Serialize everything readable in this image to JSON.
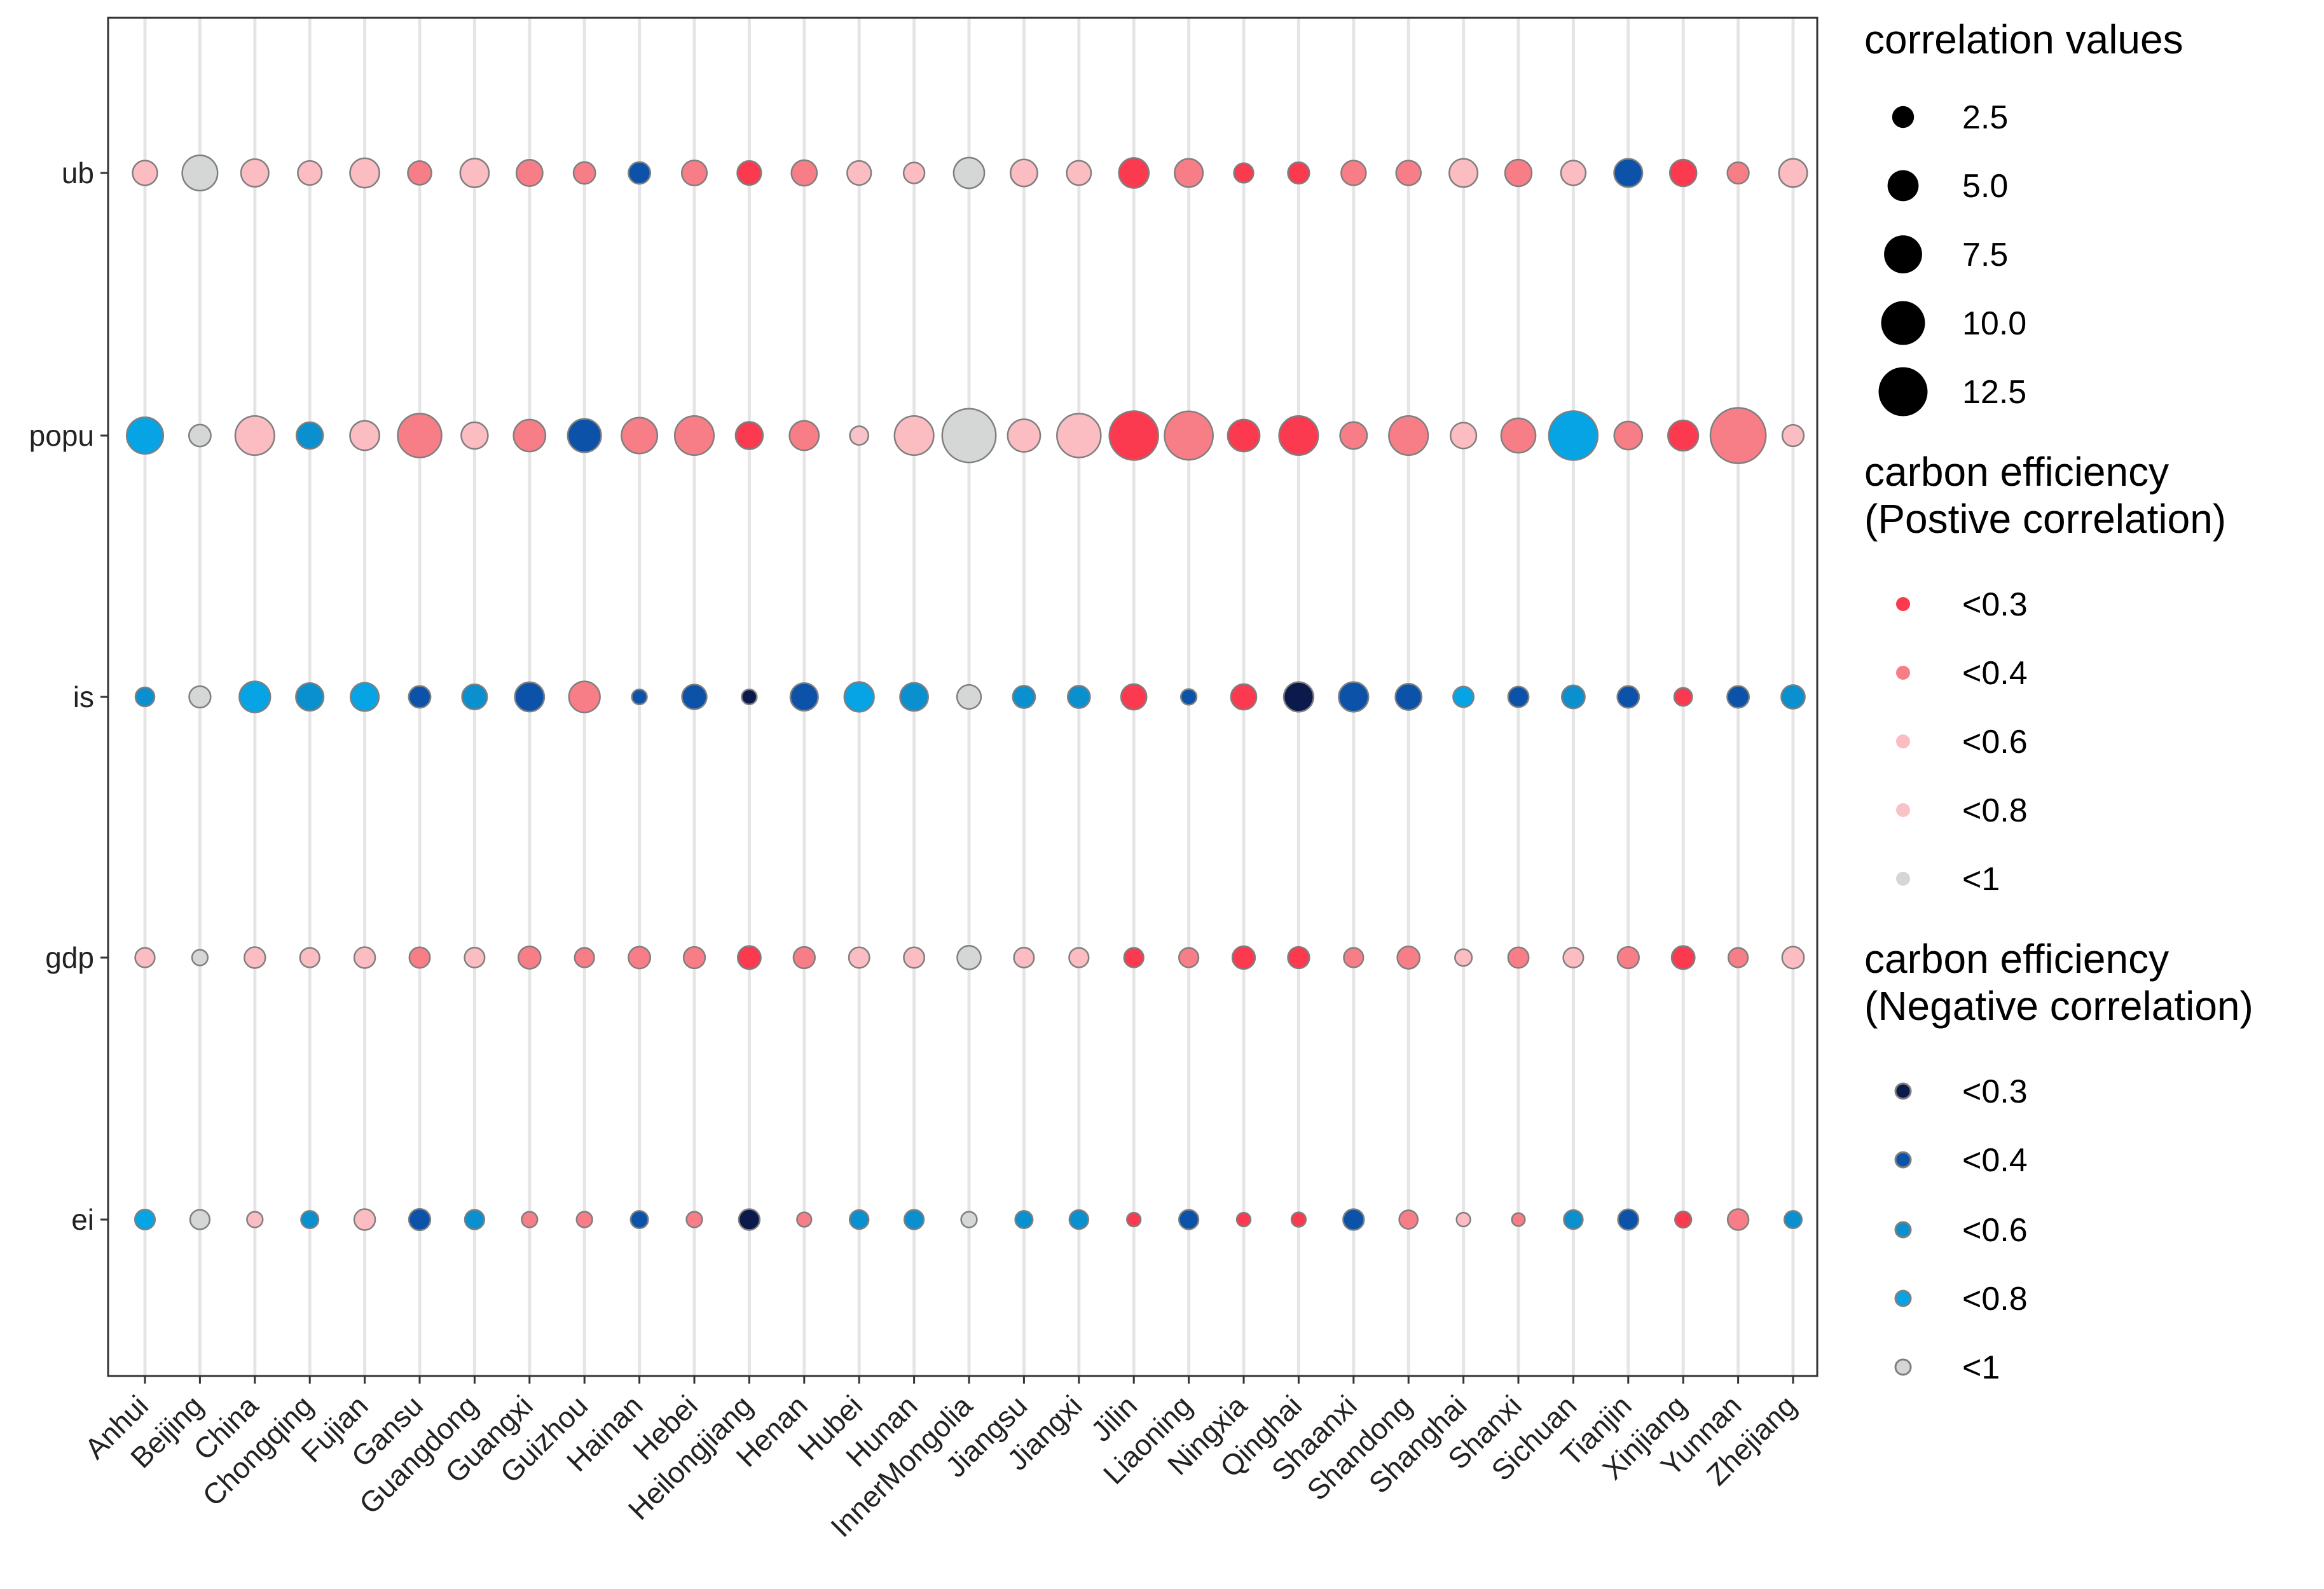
{
  "chart_data": {
    "type": "bubble",
    "categories": [
      "Anhui",
      "Beijing",
      "China",
      "Chongqing",
      "Fujian",
      "Gansu",
      "Guangdong",
      "Guangxi",
      "Guizhou",
      "Hainan",
      "Hebei",
      "Heilongjiang",
      "Henan",
      "Hubei",
      "Hunan",
      "InnerMongolia",
      "Jiangsu",
      "Jiangxi",
      "Jilin",
      "Liaoning",
      "Ningxia",
      "Qinghai",
      "Shaanxi",
      "Shandong",
      "Shanghai",
      "Shanxi",
      "Sichuan",
      "Tianjin",
      "Xinjiang",
      "Yunnan",
      "Zhejiang"
    ],
    "variables": [
      "ub",
      "popu",
      "is",
      "gdp",
      "ei"
    ],
    "colors": {
      "pos": {
        "0.3": "#fb3a4f",
        "0.4": "#f77e87",
        "0.6": "#fbbcc2",
        "0.8": "#f8c3c8",
        "1": "#d5d7d7"
      },
      "neg": {
        "0.3": "#0b1a4a",
        "0.4": "#0b52a8",
        "0.6": "#0a8fcf",
        "0.8": "#06a4e4",
        "1": "#d5d7d7"
      },
      "stroke": "#7f7f7f",
      "grid": "#e5e5e5",
      "panel_border": "#333333"
    },
    "series": [
      {
        "name": "ub",
        "points": [
          {
            "v": 3.2,
            "sign": "pos",
            "cls": "0.6"
          },
          {
            "v": 6.5,
            "sign": "pos",
            "cls": "1"
          },
          {
            "v": 4.0,
            "sign": "pos",
            "cls": "0.6"
          },
          {
            "v": 3.0,
            "sign": "pos",
            "cls": "0.6"
          },
          {
            "v": 4.5,
            "sign": "pos",
            "cls": "0.6"
          },
          {
            "v": 2.9,
            "sign": "pos",
            "cls": "0.4"
          },
          {
            "v": 4.3,
            "sign": "pos",
            "cls": "0.6"
          },
          {
            "v": 3.6,
            "sign": "pos",
            "cls": "0.4"
          },
          {
            "v": 2.5,
            "sign": "pos",
            "cls": "0.4"
          },
          {
            "v": 2.5,
            "sign": "neg",
            "cls": "0.4"
          },
          {
            "v": 3.3,
            "sign": "pos",
            "cls": "0.4"
          },
          {
            "v": 3.0,
            "sign": "pos",
            "cls": "0.3"
          },
          {
            "v": 3.4,
            "sign": "pos",
            "cls": "0.4"
          },
          {
            "v": 3.0,
            "sign": "pos",
            "cls": "0.6"
          },
          {
            "v": 2.3,
            "sign": "pos",
            "cls": "0.6"
          },
          {
            "v": 4.9,
            "sign": "pos",
            "cls": "1"
          },
          {
            "v": 3.8,
            "sign": "pos",
            "cls": "0.6"
          },
          {
            "v": 3.1,
            "sign": "pos",
            "cls": "0.6"
          },
          {
            "v": 4.7,
            "sign": "pos",
            "cls": "0.3"
          },
          {
            "v": 4.2,
            "sign": "pos",
            "cls": "0.4"
          },
          {
            "v": 2.0,
            "sign": "pos",
            "cls": "0.3"
          },
          {
            "v": 2.4,
            "sign": "pos",
            "cls": "0.3"
          },
          {
            "v": 3.2,
            "sign": "pos",
            "cls": "0.4"
          },
          {
            "v": 3.2,
            "sign": "pos",
            "cls": "0.4"
          },
          {
            "v": 4.2,
            "sign": "pos",
            "cls": "0.6"
          },
          {
            "v": 3.7,
            "sign": "pos",
            "cls": "0.4"
          },
          {
            "v": 3.2,
            "sign": "pos",
            "cls": "0.6"
          },
          {
            "v": 4.2,
            "sign": "neg",
            "cls": "0.4"
          },
          {
            "v": 3.7,
            "sign": "pos",
            "cls": "0.3"
          },
          {
            "v": 2.4,
            "sign": "pos",
            "cls": "0.4"
          },
          {
            "v": 4.2,
            "sign": "pos",
            "cls": "0.6"
          }
        ]
      },
      {
        "name": "popu",
        "points": [
          {
            "v": 7.0,
            "sign": "neg",
            "cls": "0.8"
          },
          {
            "v": 2.5,
            "sign": "pos",
            "cls": "1"
          },
          {
            "v": 8.0,
            "sign": "pos",
            "cls": "0.6"
          },
          {
            "v": 3.7,
            "sign": "neg",
            "cls": "0.6"
          },
          {
            "v": 4.5,
            "sign": "pos",
            "cls": "0.6"
          },
          {
            "v": 10.0,
            "sign": "pos",
            "cls": "0.4"
          },
          {
            "v": 3.7,
            "sign": "pos",
            "cls": "0.6"
          },
          {
            "v": 5.3,
            "sign": "pos",
            "cls": "0.4"
          },
          {
            "v": 5.8,
            "sign": "neg",
            "cls": "0.4"
          },
          {
            "v": 6.7,
            "sign": "pos",
            "cls": "0.4"
          },
          {
            "v": 8.0,
            "sign": "pos",
            "cls": "0.4"
          },
          {
            "v": 3.9,
            "sign": "pos",
            "cls": "0.3"
          },
          {
            "v": 4.5,
            "sign": "pos",
            "cls": "0.4"
          },
          {
            "v": 1.8,
            "sign": "pos",
            "cls": "0.8"
          },
          {
            "v": 8.0,
            "sign": "pos",
            "cls": "0.6"
          },
          {
            "v": 15.0,
            "sign": "pos",
            "cls": "1"
          },
          {
            "v": 5.5,
            "sign": "pos",
            "cls": "0.6"
          },
          {
            "v": 10.0,
            "sign": "pos",
            "cls": "0.6"
          },
          {
            "v": 12.5,
            "sign": "pos",
            "cls": "0.3"
          },
          {
            "v": 12.2,
            "sign": "pos",
            "cls": "0.4"
          },
          {
            "v": 5.3,
            "sign": "pos",
            "cls": "0.3"
          },
          {
            "v": 8.0,
            "sign": "pos",
            "cls": "0.3"
          },
          {
            "v": 3.8,
            "sign": "pos",
            "cls": "0.4"
          },
          {
            "v": 8.0,
            "sign": "pos",
            "cls": "0.4"
          },
          {
            "v": 3.5,
            "sign": "pos",
            "cls": "0.6"
          },
          {
            "v": 6.2,
            "sign": "pos",
            "cls": "0.4"
          },
          {
            "v": 12.5,
            "sign": "neg",
            "cls": "0.8"
          },
          {
            "v": 4.1,
            "sign": "pos",
            "cls": "0.4"
          },
          {
            "v": 4.8,
            "sign": "pos",
            "cls": "0.3"
          },
          {
            "v": 16.0,
            "sign": "pos",
            "cls": "0.4"
          },
          {
            "v": 2.4,
            "sign": "pos",
            "cls": "0.6"
          }
        ]
      },
      {
        "name": "is",
        "points": [
          {
            "v": 1.9,
            "sign": "neg",
            "cls": "0.6"
          },
          {
            "v": 2.4,
            "sign": "pos",
            "cls": "1"
          },
          {
            "v": 5.0,
            "sign": "neg",
            "cls": "0.8"
          },
          {
            "v": 4.0,
            "sign": "neg",
            "cls": "0.6"
          },
          {
            "v": 4.2,
            "sign": "neg",
            "cls": "0.8"
          },
          {
            "v": 2.5,
            "sign": "neg",
            "cls": "0.4"
          },
          {
            "v": 3.3,
            "sign": "neg",
            "cls": "0.6"
          },
          {
            "v": 4.5,
            "sign": "neg",
            "cls": "0.4"
          },
          {
            "v": 5.0,
            "sign": "pos",
            "cls": "0.4"
          },
          {
            "v": 1.2,
            "sign": "neg",
            "cls": "0.4"
          },
          {
            "v": 3.2,
            "sign": "neg",
            "cls": "0.4"
          },
          {
            "v": 1.2,
            "sign": "neg",
            "cls": "0.3"
          },
          {
            "v": 4.0,
            "sign": "neg",
            "cls": "0.4"
          },
          {
            "v": 4.6,
            "sign": "neg",
            "cls": "0.8"
          },
          {
            "v": 4.1,
            "sign": "neg",
            "cls": "0.6"
          },
          {
            "v": 3.0,
            "sign": "pos",
            "cls": "1"
          },
          {
            "v": 2.6,
            "sign": "neg",
            "cls": "0.6"
          },
          {
            "v": 2.6,
            "sign": "neg",
            "cls": "0.6"
          },
          {
            "v": 3.4,
            "sign": "pos",
            "cls": "0.3"
          },
          {
            "v": 1.3,
            "sign": "neg",
            "cls": "0.4"
          },
          {
            "v": 3.4,
            "sign": "pos",
            "cls": "0.3"
          },
          {
            "v": 4.6,
            "sign": "neg",
            "cls": "0.3"
          },
          {
            "v": 4.6,
            "sign": "neg",
            "cls": "0.4"
          },
          {
            "v": 3.6,
            "sign": "neg",
            "cls": "0.4"
          },
          {
            "v": 2.2,
            "sign": "neg",
            "cls": "0.8"
          },
          {
            "v": 2.2,
            "sign": "neg",
            "cls": "0.4"
          },
          {
            "v": 2.8,
            "sign": "neg",
            "cls": "0.6"
          },
          {
            "v": 2.5,
            "sign": "neg",
            "cls": "0.4"
          },
          {
            "v": 1.7,
            "sign": "pos",
            "cls": "0.3"
          },
          {
            "v": 2.5,
            "sign": "neg",
            "cls": "0.4"
          },
          {
            "v": 2.9,
            "sign": "neg",
            "cls": "0.6"
          }
        ]
      },
      {
        "name": "gdp",
        "points": [
          {
            "v": 2.0,
            "sign": "pos",
            "cls": "0.6"
          },
          {
            "v": 1.3,
            "sign": "pos",
            "cls": "1"
          },
          {
            "v": 2.3,
            "sign": "pos",
            "cls": "0.6"
          },
          {
            "v": 2.0,
            "sign": "pos",
            "cls": "0.6"
          },
          {
            "v": 2.3,
            "sign": "pos",
            "cls": "0.6"
          },
          {
            "v": 2.2,
            "sign": "pos",
            "cls": "0.4"
          },
          {
            "v": 2.1,
            "sign": "pos",
            "cls": "0.6"
          },
          {
            "v": 2.6,
            "sign": "pos",
            "cls": "0.4"
          },
          {
            "v": 2.0,
            "sign": "pos",
            "cls": "0.4"
          },
          {
            "v": 2.5,
            "sign": "pos",
            "cls": "0.4"
          },
          {
            "v": 2.4,
            "sign": "pos",
            "cls": "0.4"
          },
          {
            "v": 2.8,
            "sign": "pos",
            "cls": "0.3"
          },
          {
            "v": 2.4,
            "sign": "pos",
            "cls": "0.4"
          },
          {
            "v": 2.2,
            "sign": "pos",
            "cls": "0.6"
          },
          {
            "v": 2.2,
            "sign": "pos",
            "cls": "0.6"
          },
          {
            "v": 2.9,
            "sign": "pos",
            "cls": "1"
          },
          {
            "v": 2.1,
            "sign": "pos",
            "cls": "0.6"
          },
          {
            "v": 2.0,
            "sign": "pos",
            "cls": "0.6"
          },
          {
            "v": 2.0,
            "sign": "pos",
            "cls": "0.3"
          },
          {
            "v": 2.0,
            "sign": "pos",
            "cls": "0.4"
          },
          {
            "v": 2.7,
            "sign": "pos",
            "cls": "0.3"
          },
          {
            "v": 2.4,
            "sign": "pos",
            "cls": "0.3"
          },
          {
            "v": 2.0,
            "sign": "pos",
            "cls": "0.4"
          },
          {
            "v": 2.6,
            "sign": "pos",
            "cls": "0.4"
          },
          {
            "v": 1.5,
            "sign": "pos",
            "cls": "0.6"
          },
          {
            "v": 2.2,
            "sign": "pos",
            "cls": "0.4"
          },
          {
            "v": 2.1,
            "sign": "pos",
            "cls": "0.6"
          },
          {
            "v": 2.4,
            "sign": "pos",
            "cls": "0.4"
          },
          {
            "v": 2.8,
            "sign": "pos",
            "cls": "0.3"
          },
          {
            "v": 2.0,
            "sign": "pos",
            "cls": "0.4"
          },
          {
            "v": 2.5,
            "sign": "pos",
            "cls": "0.6"
          }
        ]
      },
      {
        "name": "ei",
        "points": [
          {
            "v": 2.1,
            "sign": "neg",
            "cls": "0.8"
          },
          {
            "v": 2.0,
            "sign": "pos",
            "cls": "1"
          },
          {
            "v": 1.3,
            "sign": "pos",
            "cls": "0.6"
          },
          {
            "v": 1.6,
            "sign": "neg",
            "cls": "0.6"
          },
          {
            "v": 2.3,
            "sign": "pos",
            "cls": "0.6"
          },
          {
            "v": 2.4,
            "sign": "neg",
            "cls": "0.4"
          },
          {
            "v": 2.0,
            "sign": "neg",
            "cls": "0.6"
          },
          {
            "v": 1.3,
            "sign": "pos",
            "cls": "0.4"
          },
          {
            "v": 1.3,
            "sign": "pos",
            "cls": "0.4"
          },
          {
            "v": 1.6,
            "sign": "neg",
            "cls": "0.4"
          },
          {
            "v": 1.3,
            "sign": "pos",
            "cls": "0.4"
          },
          {
            "v": 2.3,
            "sign": "neg",
            "cls": "0.3"
          },
          {
            "v": 1.1,
            "sign": "pos",
            "cls": "0.4"
          },
          {
            "v": 1.9,
            "sign": "neg",
            "cls": "0.6"
          },
          {
            "v": 2.0,
            "sign": "neg",
            "cls": "0.6"
          },
          {
            "v": 1.3,
            "sign": "pos",
            "cls": "1"
          },
          {
            "v": 1.6,
            "sign": "neg",
            "cls": "0.6"
          },
          {
            "v": 1.9,
            "sign": "neg",
            "cls": "0.6"
          },
          {
            "v": 1.0,
            "sign": "pos",
            "cls": "0.3"
          },
          {
            "v": 2.0,
            "sign": "neg",
            "cls": "0.4"
          },
          {
            "v": 1.0,
            "sign": "pos",
            "cls": "0.3"
          },
          {
            "v": 1.1,
            "sign": "pos",
            "cls": "0.3"
          },
          {
            "v": 2.3,
            "sign": "neg",
            "cls": "0.4"
          },
          {
            "v": 1.8,
            "sign": "pos",
            "cls": "0.4"
          },
          {
            "v": 1.0,
            "sign": "pos",
            "cls": "0.6"
          },
          {
            "v": 0.9,
            "sign": "pos",
            "cls": "0.4"
          },
          {
            "v": 1.9,
            "sign": "neg",
            "cls": "0.6"
          },
          {
            "v": 2.2,
            "sign": "neg",
            "cls": "0.4"
          },
          {
            "v": 1.4,
            "sign": "pos",
            "cls": "0.3"
          },
          {
            "v": 2.3,
            "sign": "pos",
            "cls": "0.4"
          },
          {
            "v": 1.6,
            "sign": "neg",
            "cls": "0.6"
          }
        ]
      }
    ],
    "legend": {
      "size_title": "correlation values",
      "size_breaks": [
        2.5,
        5.0,
        7.5,
        10.0,
        12.5
      ],
      "size_labels": [
        "2.5",
        "5.0",
        "7.5",
        "10.0",
        "12.5"
      ],
      "pos_title_line1": "carbon efficiency",
      "pos_title_line2": "(Postive correlation)",
      "pos_breaks": [
        "0.3",
        "0.4",
        "0.6",
        "0.8",
        "1"
      ],
      "pos_labels": [
        "<0.3",
        "<0.4",
        "<0.6",
        "<0.8",
        "<1"
      ],
      "neg_title_line1": "carbon efficiency",
      "neg_title_line2": "(Negative correlation)",
      "neg_breaks": [
        "0.3",
        "0.4",
        "0.6",
        "0.8",
        "1"
      ],
      "neg_labels": [
        "<0.3",
        "<0.4",
        "<0.6",
        "<0.8",
        "<1"
      ],
      "position": "right"
    },
    "title": "",
    "xlabel": "",
    "ylabel": ""
  }
}
